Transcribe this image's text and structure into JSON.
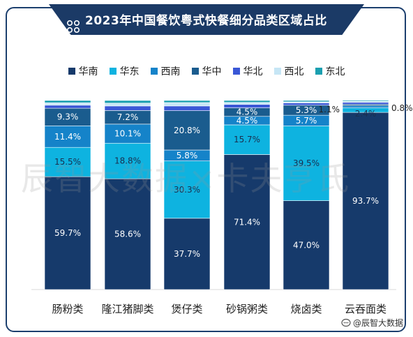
{
  "title": "2023年中国餐饮粤式快餐细分品类区域占比",
  "watermark": "辰智大数据×卡夫亨氏",
  "source": "@辰智大数据",
  "colors": {
    "华南": "#163a6b",
    "华东": "#0eb3e0",
    "西南": "#1583c9",
    "华中": "#1a5c8e",
    "华北": "#3a57d6",
    "西北": "#c6e6f5",
    "东北": "#1a9fb0"
  },
  "chart_data": {
    "type": "bar",
    "stacked": true,
    "title": "2023年中国餐饮粤式快餐细分品类区域占比",
    "categories": [
      "肠粉类",
      "隆江猪脚类",
      "煲仔类",
      "砂锅粥类",
      "烧卤类",
      "云吞面类"
    ],
    "legend_position": "top",
    "ylim": [
      0,
      100
    ],
    "series": [
      {
        "name": "华南",
        "values": [
          59.7,
          58.6,
          37.7,
          71.4,
          47.0,
          93.7
        ],
        "labels": [
          "59.7%",
          "58.6%",
          "37.7%",
          "71.4%",
          "47.0%",
          "93.7%"
        ]
      },
      {
        "name": "华东",
        "values": [
          15.5,
          18.8,
          30.3,
          15.7,
          39.5,
          2.4
        ],
        "labels": [
          "15.5%",
          "18.8%",
          "30.3%",
          "15.7%",
          "39.5%",
          "2.4%"
        ]
      },
      {
        "name": "西南",
        "values": [
          11.4,
          10.1,
          5.8,
          4.5,
          5.7,
          1.1
        ],
        "labels": [
          "11.4%",
          "10.1%",
          "5.8%",
          "4.5%",
          "5.7%",
          "1.1%"
        ]
      },
      {
        "name": "华中",
        "values": [
          9.3,
          7.2,
          20.8,
          4.5,
          5.3,
          0.8
        ],
        "labels": [
          "9.3%",
          "7.2%",
          "20.8%",
          "4.5%",
          "5.3%",
          "0.8%"
        ]
      },
      {
        "name": "华北",
        "values": [
          1.6,
          2.4,
          2.5,
          1.8,
          1.2,
          1.0
        ],
        "labels": [
          null,
          null,
          null,
          null,
          null,
          null
        ]
      },
      {
        "name": "西北",
        "values": [
          1.3,
          1.5,
          1.8,
          1.1,
          0.6,
          0.5
        ],
        "labels": [
          null,
          null,
          null,
          null,
          null,
          null
        ]
      },
      {
        "name": "东北",
        "values": [
          1.2,
          1.4,
          1.1,
          1.0,
          0.7,
          0.5
        ],
        "labels": [
          null,
          null,
          null,
          null,
          null,
          null
        ]
      }
    ]
  }
}
